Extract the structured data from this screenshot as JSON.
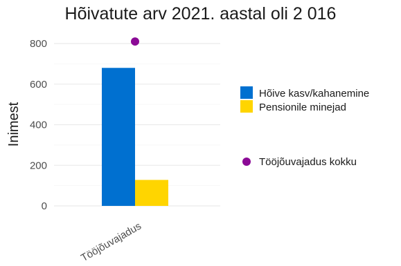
{
  "chart_data": {
    "type": "bar",
    "title": "Hõivatute arv 2021. aastal oli 2 016",
    "ylabel": "Inimest",
    "xlabel": "",
    "categories": [
      "Tööjõuvajadus"
    ],
    "ylim": [
      0,
      850
    ],
    "yticks": [
      0,
      200,
      400,
      600,
      800
    ],
    "grid": true,
    "legend_position": "right",
    "series": [
      {
        "name": "Hõive kasv/kahanemine",
        "type": "bar",
        "color": "#0070d0",
        "values": [
          680
        ]
      },
      {
        "name": "Pensionile minejad",
        "type": "bar",
        "color": "#ffd500",
        "values": [
          128
        ]
      },
      {
        "name": "Tööjõuvajadus kokku",
        "type": "point",
        "color": "#8b0a96",
        "values": [
          810
        ]
      }
    ]
  }
}
